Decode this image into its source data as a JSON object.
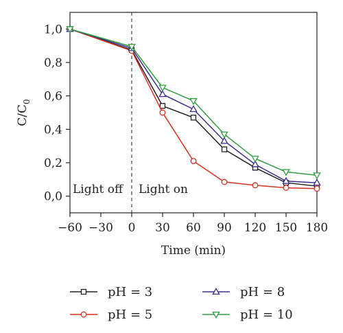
{
  "chart_data": {
    "type": "line",
    "xlabel": "Time (min)",
    "ylabel": {
      "main": "C/C",
      "sub": "0"
    },
    "xlim": [
      -60,
      180
    ],
    "ylim": [
      -0.1,
      1.1
    ],
    "x_ticks": [
      -60,
      -30,
      0,
      30,
      60,
      90,
      120,
      150,
      180
    ],
    "x_tick_labels": [
      "−60",
      "−30",
      "0",
      "30",
      "60",
      "90",
      "120",
      "150",
      "180"
    ],
    "y_ticks": [
      0.0,
      0.2,
      0.4,
      0.6,
      0.8,
      1.0
    ],
    "y_tick_labels": [
      "0,0",
      "0,2",
      "0,4",
      "0,6",
      "0,8",
      "1,0"
    ],
    "x": [
      -60,
      0,
      30,
      60,
      90,
      120,
      150,
      180
    ],
    "divider_x": 0,
    "annotations": {
      "left": "Light off",
      "right": "Light on"
    },
    "legend_position": "bottom",
    "series": [
      {
        "name": "pH = 3",
        "color": "#231f20",
        "marker": "square",
        "values": [
          1.0,
          0.875,
          0.54,
          0.47,
          0.28,
          0.17,
          0.08,
          0.06
        ]
      },
      {
        "name": "pH = 5",
        "color": "#d7301f",
        "marker": "circle",
        "values": [
          1.0,
          0.87,
          0.5,
          0.21,
          0.085,
          0.065,
          0.05,
          0.045
        ]
      },
      {
        "name": "pH = 8",
        "color": "#3b2f8f",
        "marker": "triangle-up",
        "values": [
          1.0,
          0.885,
          0.61,
          0.52,
          0.33,
          0.19,
          0.09,
          0.08
        ]
      },
      {
        "name": "pH = 10",
        "color": "#2f9e3f",
        "marker": "triangle-down",
        "values": [
          1.0,
          0.895,
          0.65,
          0.57,
          0.37,
          0.225,
          0.145,
          0.125
        ]
      }
    ]
  }
}
